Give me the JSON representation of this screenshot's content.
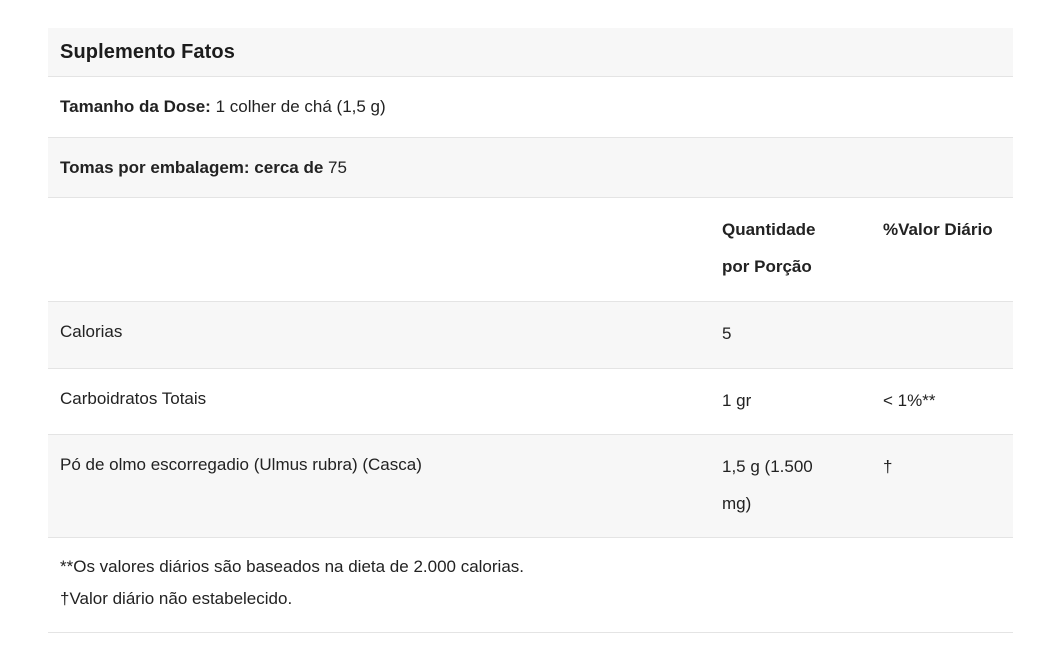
{
  "table": {
    "title": "Suplemento Fatos",
    "serving": {
      "label": "Tamanho da Dose:",
      "value": "1 colher de chá (1,5 g)"
    },
    "servings": {
      "label": "Tomas por embalagem: cerca de",
      "value": "75"
    },
    "header": {
      "amount": "Quantidade por Porção",
      "dv": "%Valor Diário"
    },
    "rows": [
      {
        "name": "Calorias",
        "amount": "5",
        "dv": ""
      },
      {
        "name": "Carboidratos Totais",
        "amount": "1 gr",
        "dv": "< 1%**"
      },
      {
        "name": "Pó de olmo escorregadio (Ulmus rubra) (Casca)",
        "amount": "1,5 g (1.500 mg)",
        "dv": "†"
      }
    ],
    "footnotes": [
      "**Os valores diários são baseados na dieta de 2.000 calorias.",
      "†Valor diário não estabelecido."
    ]
  },
  "colors": {
    "stripe_bg": "#f7f7f7",
    "border": "#e4e4e4",
    "text": "#222222",
    "title_text": "#1c1c1c"
  }
}
